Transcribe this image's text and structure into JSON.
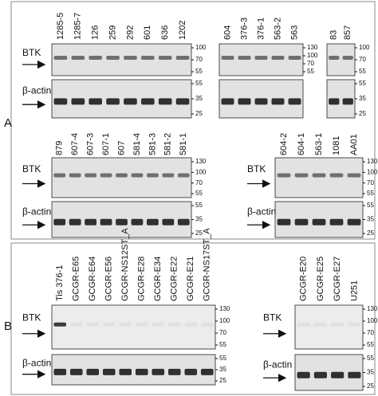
{
  "panels": [
    {
      "label": "A",
      "blots": [
        {
          "lanes": [
            "1285-5",
            "1285-7",
            "126",
            "259",
            "292",
            "601",
            "636",
            "1202"
          ],
          "btk_label": "BTK",
          "actin_label": "β-actin",
          "btk_markers": [
            "100",
            "70",
            "55"
          ],
          "actin_markers": [
            "55",
            "35",
            "25"
          ]
        },
        {
          "lanes": [
            "604",
            "376-3",
            "376-1",
            "563-2",
            "563"
          ],
          "btk_markers": [
            "130",
            "100",
            "70",
            "55"
          ]
        },
        {
          "lanes": [
            "83",
            "857"
          ],
          "btk_markers": [
            "100",
            "70",
            "55"
          ],
          "actin_markers": [
            "55",
            "35",
            "25"
          ]
        },
        {
          "lanes": [
            "879",
            "607-4",
            "607-3",
            "607-1",
            "607",
            "581-4",
            "581-3",
            "581-2",
            "581-1"
          ],
          "btk_label": "BTK",
          "actin_label": "β-actin",
          "btk_markers": [
            "130",
            "100",
            "70",
            "55"
          ],
          "actin_markers": [
            "55",
            "35",
            "25"
          ]
        },
        {
          "lanes": [
            "604-2",
            "604-1",
            "563-1",
            "1081",
            "AA01"
          ],
          "btk_label": "BTK",
          "actin_label": "β-actin",
          "btk_markers": [
            "130",
            "100",
            "70",
            "55"
          ],
          "actin_markers": [
            "55",
            "35",
            "25"
          ]
        }
      ]
    },
    {
      "label": "B",
      "blots": [
        {
          "lanes": [
            "Tis 376-1",
            "GCGR-E65",
            "GCGR-E64",
            "GCGR-E56",
            "GCGR-NS12ST_A",
            "GCGR-E28",
            "GCGR-E34",
            "GCGR-E22",
            "GCGR-E21",
            "GCGR-NS17ST_A"
          ],
          "btk_label": "BTK",
          "actin_label": "β-actin",
          "btk_markers": [
            "130",
            "100",
            "70",
            "55"
          ],
          "actin_markers": [
            "55",
            "35",
            "25"
          ]
        },
        {
          "lanes": [
            "GCGR-E20",
            "GCGR-E25",
            "GCGR-E27",
            "U251"
          ],
          "btk_label": "BTK",
          "actin_label": "β-actin",
          "btk_markers": [
            "130",
            "100",
            "70",
            "55"
          ],
          "actin_markers": [
            "55",
            "35",
            "25"
          ]
        }
      ]
    }
  ]
}
